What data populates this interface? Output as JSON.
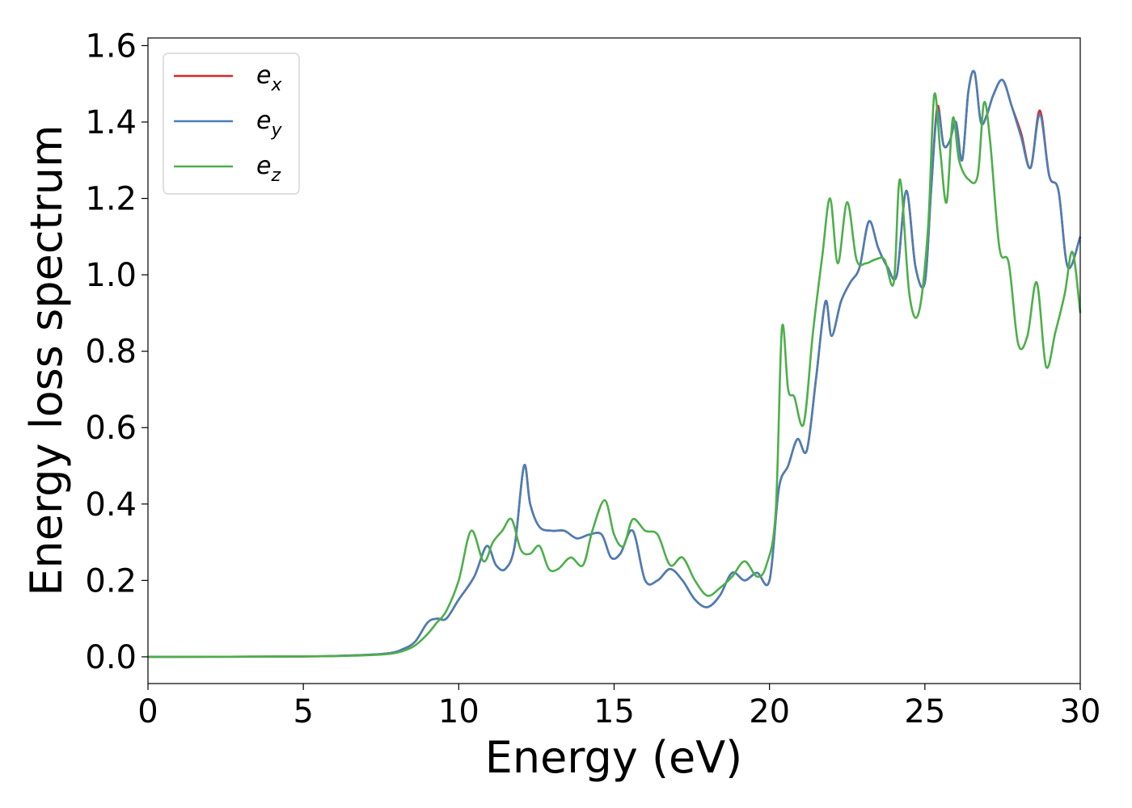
{
  "chart_data": {
    "type": "line",
    "title": "",
    "xlabel": "Energy (eV)",
    "ylabel": "Energy loss spectrum",
    "xlim": [
      0,
      30
    ],
    "ylim": [
      -0.07,
      1.62
    ],
    "xticks": [
      0,
      5,
      10,
      15,
      20,
      25,
      30
    ],
    "xtick_labels": [
      "0",
      "5",
      "10",
      "15",
      "20",
      "25",
      "30"
    ],
    "yticks": [
      0.0,
      0.2,
      0.4,
      0.6,
      0.8,
      1.0,
      1.2,
      1.4,
      1.6
    ],
    "ytick_labels": [
      "0.0",
      "0.2",
      "0.4",
      "0.6",
      "0.8",
      "1.0",
      "1.2",
      "1.4",
      "1.6"
    ],
    "grid": false,
    "legend_position": "top-left",
    "legend": [
      {
        "base": "e",
        "sub": "x",
        "color": "#d62728"
      },
      {
        "base": "e",
        "sub": "y",
        "color": "#4a7fb5"
      },
      {
        "base": "e",
        "sub": "z",
        "color": "#4daf4a"
      }
    ],
    "series": [
      {
        "name": "e_x",
        "color": "#d62728",
        "x": [
          0,
          5,
          7,
          7.8,
          8.2,
          8.6,
          9.0,
          9.3,
          9.6,
          10.0,
          10.5,
          10.9,
          11.2,
          11.5,
          11.8,
          12.1,
          12.3,
          12.6,
          13.0,
          13.4,
          13.8,
          14.2,
          14.6,
          14.9,
          15.2,
          15.6,
          16.0,
          16.4,
          16.8,
          17.2,
          17.6,
          18.0,
          18.4,
          18.8,
          19.2,
          19.6,
          20.0,
          20.3,
          20.6,
          20.9,
          21.2,
          21.5,
          21.8,
          22.0,
          22.3,
          22.6,
          22.9,
          23.2,
          23.5,
          23.8,
          24.1,
          24.4,
          24.7,
          25.0,
          25.2,
          25.4,
          25.6,
          25.8,
          26.0,
          26.2,
          26.4,
          26.6,
          26.8,
          27.0,
          27.2,
          27.5,
          27.8,
          28.1,
          28.4,
          28.7,
          29.0,
          29.3,
          29.6,
          30.0
        ],
        "y": [
          0.0,
          0.001,
          0.005,
          0.01,
          0.02,
          0.04,
          0.09,
          0.1,
          0.1,
          0.15,
          0.21,
          0.29,
          0.24,
          0.23,
          0.29,
          0.5,
          0.4,
          0.34,
          0.33,
          0.33,
          0.31,
          0.32,
          0.32,
          0.26,
          0.27,
          0.33,
          0.2,
          0.2,
          0.23,
          0.2,
          0.15,
          0.13,
          0.16,
          0.22,
          0.2,
          0.22,
          0.2,
          0.44,
          0.5,
          0.57,
          0.54,
          0.73,
          0.93,
          0.84,
          0.93,
          0.98,
          1.02,
          1.14,
          1.07,
          1.02,
          1.0,
          1.22,
          1.02,
          0.98,
          1.22,
          1.44,
          1.34,
          1.35,
          1.4,
          1.3,
          1.48,
          1.53,
          1.4,
          1.42,
          1.47,
          1.51,
          1.44,
          1.37,
          1.28,
          1.43,
          1.26,
          1.22,
          1.02,
          1.1
        ]
      },
      {
        "name": "e_y",
        "color": "#4a7fb5",
        "x": [
          0,
          5,
          7,
          7.8,
          8.2,
          8.6,
          9.0,
          9.3,
          9.6,
          10.0,
          10.5,
          10.9,
          11.2,
          11.5,
          11.8,
          12.1,
          12.3,
          12.6,
          13.0,
          13.4,
          13.8,
          14.2,
          14.6,
          14.9,
          15.2,
          15.6,
          16.0,
          16.4,
          16.8,
          17.2,
          17.6,
          18.0,
          18.4,
          18.8,
          19.2,
          19.6,
          20.0,
          20.3,
          20.6,
          20.9,
          21.2,
          21.5,
          21.8,
          22.0,
          22.3,
          22.6,
          22.9,
          23.2,
          23.5,
          23.8,
          24.1,
          24.4,
          24.7,
          25.0,
          25.2,
          25.4,
          25.6,
          25.8,
          26.0,
          26.2,
          26.4,
          26.6,
          26.8,
          27.0,
          27.2,
          27.5,
          27.8,
          28.1,
          28.4,
          28.7,
          29.0,
          29.3,
          29.6,
          30.0
        ],
        "y": [
          0.0,
          0.001,
          0.005,
          0.01,
          0.02,
          0.04,
          0.09,
          0.1,
          0.1,
          0.15,
          0.21,
          0.29,
          0.24,
          0.23,
          0.29,
          0.5,
          0.4,
          0.34,
          0.33,
          0.33,
          0.31,
          0.32,
          0.32,
          0.26,
          0.27,
          0.33,
          0.2,
          0.2,
          0.23,
          0.2,
          0.15,
          0.13,
          0.16,
          0.22,
          0.2,
          0.22,
          0.2,
          0.44,
          0.5,
          0.57,
          0.54,
          0.73,
          0.93,
          0.84,
          0.93,
          0.98,
          1.02,
          1.14,
          1.07,
          1.02,
          1.0,
          1.22,
          1.02,
          0.98,
          1.22,
          1.43,
          1.34,
          1.35,
          1.4,
          1.3,
          1.48,
          1.53,
          1.4,
          1.42,
          1.47,
          1.51,
          1.44,
          1.36,
          1.28,
          1.42,
          1.26,
          1.22,
          1.02,
          1.1
        ]
      },
      {
        "name": "e_z",
        "color": "#4daf4a",
        "x": [
          0,
          5,
          7,
          7.8,
          8.2,
          8.6,
          9.0,
          9.3,
          9.6,
          10.0,
          10.4,
          10.8,
          11.1,
          11.4,
          11.7,
          12.0,
          12.3,
          12.6,
          12.9,
          13.2,
          13.6,
          14.0,
          14.3,
          14.7,
          15.0,
          15.3,
          15.6,
          16.0,
          16.4,
          16.8,
          17.2,
          17.6,
          18.0,
          18.4,
          18.8,
          19.2,
          19.6,
          19.9,
          20.2,
          20.4,
          20.6,
          20.8,
          21.1,
          21.4,
          21.7,
          21.95,
          22.2,
          22.5,
          22.8,
          23.1,
          23.4,
          23.7,
          24.0,
          24.2,
          24.5,
          24.8,
          25.1,
          25.3,
          25.5,
          25.7,
          25.9,
          26.1,
          26.4,
          26.7,
          26.9,
          27.1,
          27.4,
          27.7,
          28.0,
          28.3,
          28.6,
          28.9,
          29.2,
          29.5,
          29.75,
          30.0
        ],
        "y": [
          0.0,
          0.001,
          0.004,
          0.008,
          0.015,
          0.03,
          0.06,
          0.09,
          0.12,
          0.2,
          0.33,
          0.25,
          0.3,
          0.33,
          0.36,
          0.28,
          0.27,
          0.29,
          0.23,
          0.23,
          0.26,
          0.24,
          0.33,
          0.41,
          0.32,
          0.29,
          0.36,
          0.33,
          0.32,
          0.24,
          0.26,
          0.2,
          0.16,
          0.18,
          0.21,
          0.25,
          0.21,
          0.24,
          0.38,
          0.86,
          0.7,
          0.68,
          0.61,
          0.85,
          1.05,
          1.2,
          1.03,
          1.19,
          1.04,
          1.03,
          1.04,
          1.04,
          0.98,
          1.25,
          0.95,
          0.9,
          1.12,
          1.47,
          1.32,
          1.19,
          1.41,
          1.3,
          1.25,
          1.26,
          1.45,
          1.35,
          1.07,
          1.03,
          0.82,
          0.84,
          0.98,
          0.76,
          0.85,
          0.95,
          1.06,
          0.9
        ]
      }
    ]
  }
}
